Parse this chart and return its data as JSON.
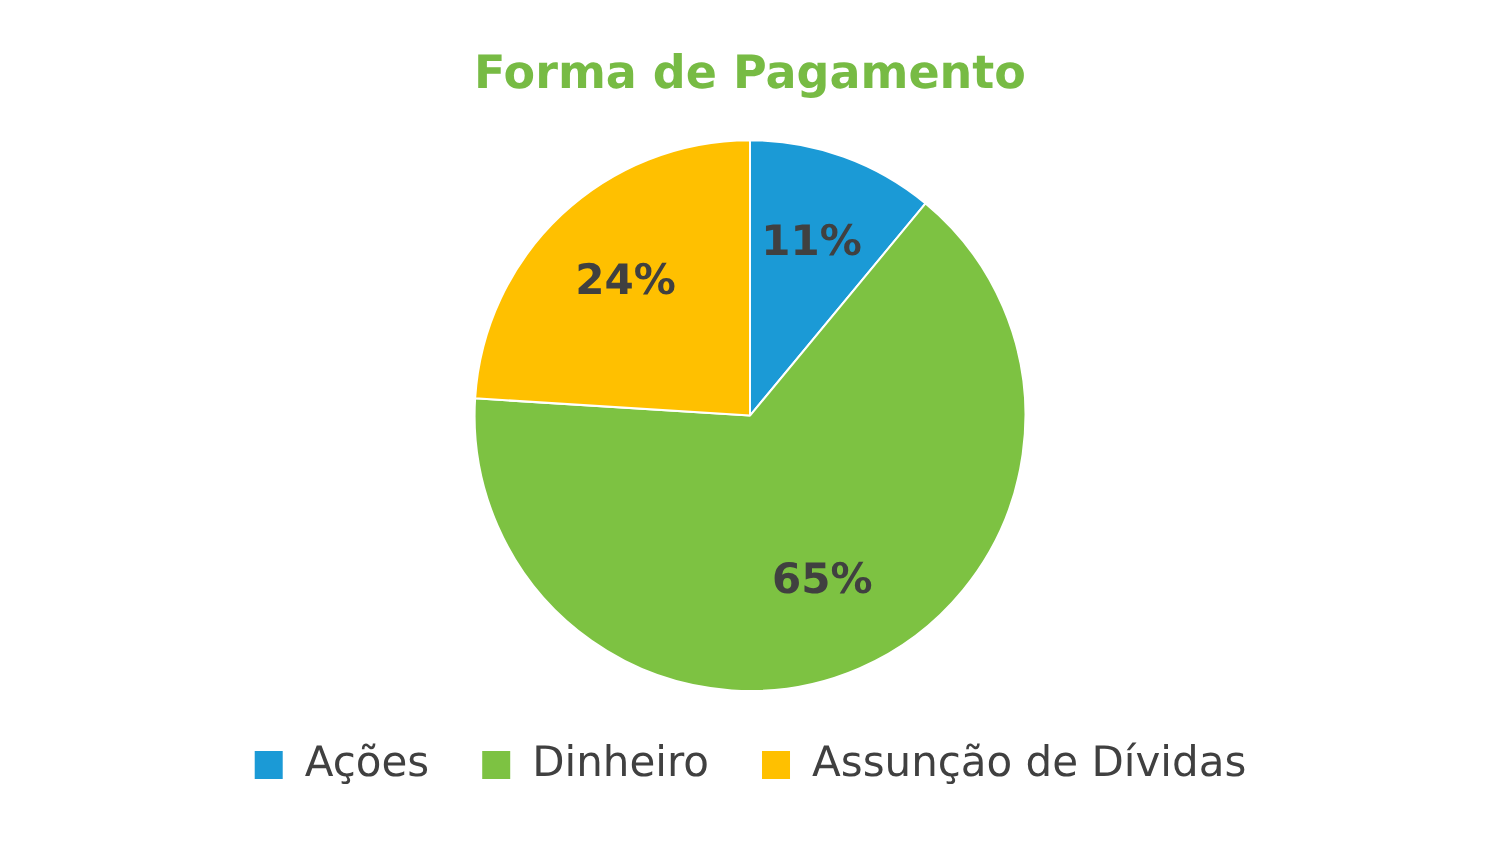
{
  "chart_data": {
    "type": "pie",
    "title": "Forma de Pagamento",
    "categories": [
      "Ações",
      "Dinheiro",
      "Assunção de Dívidas"
    ],
    "values": [
      11,
      65,
      24
    ],
    "colors": [
      "#1b9ad6",
      "#7dc242",
      "#ffc000"
    ],
    "value_labels": [
      "11%",
      "65%",
      "24%"
    ],
    "legend": "bottom"
  }
}
